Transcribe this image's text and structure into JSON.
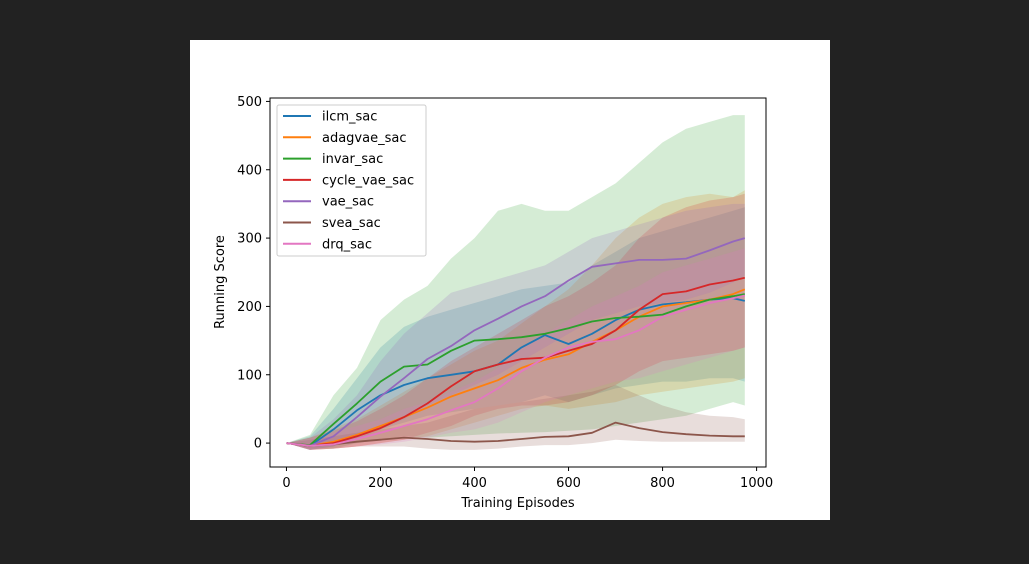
{
  "chart_data": {
    "type": "line",
    "title": "",
    "xlabel": "Training Episodes",
    "ylabel": "Running Score",
    "xlim": [
      -35,
      1020
    ],
    "ylim": [
      -35,
      505
    ],
    "xticks": [
      0,
      200,
      400,
      600,
      800,
      1000
    ],
    "yticks": [
      0,
      100,
      200,
      300,
      400,
      500
    ],
    "grid": false,
    "legend_position": "top-left",
    "x": [
      0,
      50,
      100,
      150,
      200,
      250,
      300,
      350,
      400,
      450,
      500,
      550,
      600,
      650,
      700,
      750,
      800,
      850,
      900,
      950,
      975
    ],
    "series": [
      {
        "name": "ilcm_sac",
        "color": "#1f77b4",
        "values": [
          0,
          -4,
          20,
          48,
          70,
          85,
          95,
          100,
          105,
          115,
          140,
          158,
          145,
          160,
          180,
          195,
          203,
          206,
          210,
          212,
          208
        ],
        "band_upper": [
          0,
          10,
          50,
          95,
          140,
          170,
          185,
          195,
          205,
          215,
          225,
          230,
          235,
          260,
          280,
          300,
          310,
          320,
          330,
          340,
          345
        ],
        "band_lower": [
          0,
          -10,
          -5,
          10,
          20,
          30,
          40,
          45,
          50,
          55,
          60,
          70,
          60,
          70,
          80,
          85,
          90,
          90,
          95,
          95,
          90
        ]
      },
      {
        "name": "adagvae_sac",
        "color": "#ff7f0e",
        "values": [
          0,
          -4,
          2,
          12,
          25,
          38,
          52,
          68,
          80,
          92,
          110,
          122,
          130,
          148,
          165,
          185,
          200,
          205,
          210,
          218,
          225
        ],
        "band_upper": [
          0,
          8,
          22,
          35,
          55,
          75,
          95,
          115,
          135,
          150,
          175,
          200,
          225,
          260,
          300,
          330,
          350,
          360,
          365,
          360,
          370
        ],
        "band_lower": [
          0,
          -10,
          -8,
          -5,
          0,
          5,
          10,
          20,
          30,
          40,
          50,
          55,
          50,
          55,
          60,
          70,
          75,
          80,
          85,
          90,
          95
        ]
      },
      {
        "name": "invar_sac",
        "color": "#2ca02c",
        "values": [
          0,
          -3,
          28,
          58,
          90,
          112,
          115,
          135,
          150,
          152,
          155,
          160,
          168,
          178,
          183,
          185,
          188,
          200,
          210,
          215,
          218
        ],
        "band_upper": [
          0,
          12,
          70,
          110,
          180,
          210,
          230,
          270,
          300,
          340,
          350,
          340,
          340,
          360,
          380,
          410,
          440,
          460,
          470,
          480,
          480
        ],
        "band_lower": [
          0,
          -8,
          -8,
          0,
          5,
          10,
          8,
          10,
          12,
          14,
          15,
          16,
          18,
          20,
          25,
          30,
          35,
          40,
          50,
          60,
          55
        ]
      },
      {
        "name": "cycle_vae_sac",
        "color": "#d62728",
        "values": [
          0,
          -4,
          0,
          10,
          22,
          38,
          58,
          83,
          105,
          115,
          123,
          125,
          135,
          145,
          165,
          195,
          218,
          222,
          232,
          238,
          242
        ],
        "band_upper": [
          0,
          8,
          18,
          32,
          50,
          70,
          95,
          120,
          140,
          160,
          180,
          200,
          215,
          235,
          260,
          300,
          330,
          345,
          355,
          360,
          365
        ],
        "band_lower": [
          0,
          -10,
          -8,
          -5,
          0,
          5,
          15,
          25,
          40,
          50,
          55,
          55,
          60,
          70,
          85,
          105,
          120,
          125,
          130,
          135,
          140
        ]
      },
      {
        "name": "vae_sac",
        "color": "#9467bd",
        "values": [
          0,
          -4,
          10,
          38,
          68,
          95,
          123,
          142,
          165,
          182,
          200,
          215,
          238,
          258,
          263,
          268,
          268,
          270,
          282,
          295,
          300
        ],
        "band_upper": [
          0,
          8,
          35,
          70,
          120,
          160,
          190,
          220,
          230,
          240,
          250,
          260,
          280,
          300,
          310,
          320,
          330,
          340,
          345,
          350,
          350
        ],
        "band_lower": [
          0,
          -10,
          -5,
          5,
          20,
          35,
          55,
          70,
          85,
          100,
          120,
          140,
          160,
          180,
          190,
          200,
          205,
          210,
          220,
          235,
          245
        ]
      },
      {
        "name": "svea_sac",
        "color": "#8c564b",
        "values": [
          0,
          -4,
          -2,
          2,
          5,
          8,
          6,
          3,
          2,
          3,
          6,
          9,
          10,
          15,
          30,
          22,
          16,
          13,
          11,
          10,
          10
        ],
        "band_upper": [
          0,
          5,
          10,
          15,
          20,
          25,
          30,
          40,
          50,
          55,
          60,
          65,
          70,
          75,
          85,
          70,
          55,
          45,
          40,
          38,
          35
        ],
        "band_lower": [
          0,
          -10,
          -8,
          -5,
          -5,
          -5,
          -8,
          -10,
          -10,
          -8,
          -5,
          -3,
          -3,
          0,
          5,
          3,
          2,
          2,
          2,
          2,
          2
        ]
      },
      {
        "name": "drq_sac",
        "color": "#e377c2",
        "values": [
          0,
          -4,
          -2,
          6,
          15,
          25,
          35,
          48,
          60,
          80,
          105,
          125,
          140,
          148,
          152,
          165,
          185,
          195,
          205,
          212,
          216
        ],
        "band_upper": [
          0,
          6,
          15,
          25,
          35,
          50,
          60,
          75,
          90,
          110,
          140,
          160,
          180,
          200,
          215,
          230,
          250,
          260,
          270,
          280,
          285
        ],
        "band_lower": [
          0,
          -10,
          -8,
          -5,
          -2,
          2,
          8,
          15,
          20,
          30,
          45,
          60,
          70,
          80,
          90,
          95,
          105,
          115,
          125,
          135,
          140
        ]
      }
    ]
  }
}
